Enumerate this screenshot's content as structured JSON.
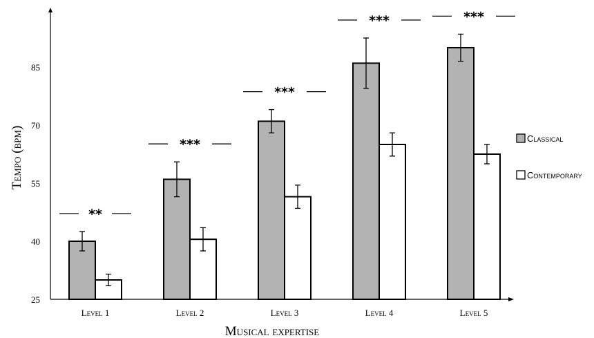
{
  "chart_data": {
    "type": "bar",
    "xlabel": "Musical expertise",
    "ylabel": "Tempo (bpm)",
    "ylim": [
      25,
      95
    ],
    "yticks": [
      25,
      40,
      55,
      70,
      85
    ],
    "categories": [
      "Level 1",
      "Level 2",
      "Level 3",
      "Level 4",
      "Level 5"
    ],
    "series": [
      {
        "name": "Classical",
        "color": "#b3b3b3",
        "values": [
          40,
          56,
          71,
          86,
          90
        ],
        "error": [
          2.5,
          4.5,
          3,
          6.5,
          3.5
        ]
      },
      {
        "name": "Contemporary",
        "color": "#ffffff",
        "values": [
          30,
          40.5,
          51.5,
          65,
          62.5
        ],
        "error": [
          1.5,
          3,
          3,
          3,
          2.5
        ]
      }
    ],
    "significance": [
      "**",
      "***",
      "***",
      "***",
      "***"
    ],
    "legend_position": "right",
    "grid": false
  }
}
